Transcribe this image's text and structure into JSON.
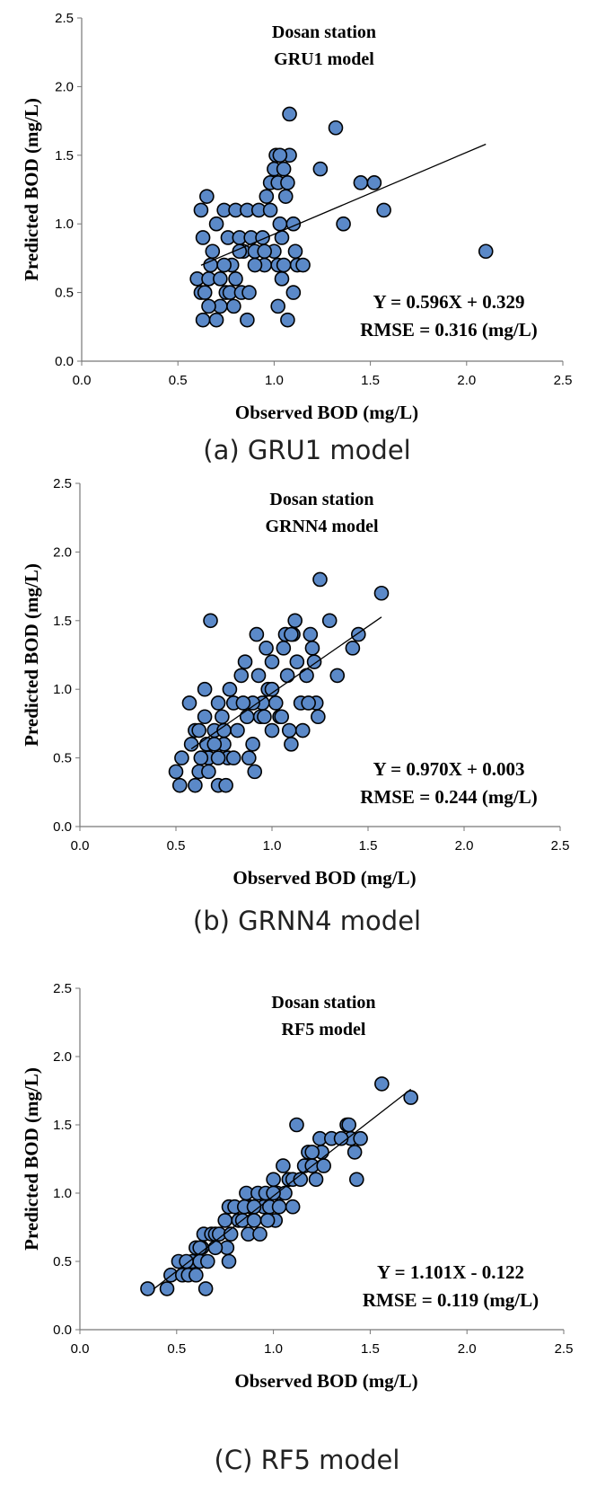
{
  "chart_data": [
    {
      "type": "scatter",
      "title": [
        "Dosan station",
        "GRU1 model"
      ],
      "xlabel": "Observed BOD (mg/L)",
      "ylabel": "Predicted BOD  (mg/L)",
      "xlim": [
        0.0,
        2.5
      ],
      "ylim": [
        0.0,
        2.5
      ],
      "xticks": [
        "0.0",
        "0.5",
        "1.0",
        "1.5",
        "2.0",
        "2.5"
      ],
      "yticks": [
        "0.0",
        "0.5",
        "1.0",
        "1.5",
        "2.0",
        "2.5"
      ],
      "grid": false,
      "equation": "Y = 0.596X + 0.329",
      "rmse": "RMSE = 0.316 (mg/L)",
      "fit": {
        "slope": 0.596,
        "intercept": 0.329,
        "x_range": [
          0.62,
          2.1
        ]
      },
      "points": [
        [
          0.62,
          1.1
        ],
        [
          0.63,
          0.9
        ],
        [
          0.65,
          1.2
        ],
        [
          0.6,
          0.6
        ],
        [
          0.62,
          0.5
        ],
        [
          0.64,
          0.5
        ],
        [
          0.66,
          0.6
        ],
        [
          0.63,
          0.3
        ],
        [
          0.67,
          0.7
        ],
        [
          0.68,
          0.8
        ],
        [
          0.7,
          1.0
        ],
        [
          0.72,
          0.6
        ],
        [
          0.7,
          0.3
        ],
        [
          0.74,
          1.1
        ],
        [
          0.76,
          0.9
        ],
        [
          0.78,
          0.7
        ],
        [
          0.75,
          0.5
        ],
        [
          0.77,
          0.5
        ],
        [
          0.72,
          0.4
        ],
        [
          0.79,
          0.4
        ],
        [
          0.8,
          1.1
        ],
        [
          0.82,
          0.9
        ],
        [
          0.84,
          0.8
        ],
        [
          0.86,
          1.1
        ],
        [
          0.8,
          0.6
        ],
        [
          0.83,
          0.5
        ],
        [
          0.87,
          0.5
        ],
        [
          0.86,
          0.3
        ],
        [
          0.88,
          0.9
        ],
        [
          0.9,
          0.8
        ],
        [
          0.92,
          1.1
        ],
        [
          0.94,
          0.9
        ],
        [
          0.95,
          0.7
        ],
        [
          0.96,
          1.2
        ],
        [
          0.98,
          1.3
        ],
        [
          1.0,
          1.4
        ],
        [
          1.01,
          1.5
        ],
        [
          1.02,
          1.3
        ],
        [
          1.03,
          1.0
        ],
        [
          1.0,
          0.8
        ],
        [
          1.02,
          0.7
        ],
        [
          1.04,
          0.6
        ],
        [
          1.02,
          0.4
        ],
        [
          1.05,
          1.4
        ],
        [
          1.06,
          1.2
        ],
        [
          1.07,
          1.3
        ],
        [
          1.08,
          1.5
        ],
        [
          1.1,
          1.0
        ],
        [
          1.11,
          0.8
        ],
        [
          1.12,
          0.7
        ],
        [
          1.1,
          0.5
        ],
        [
          1.07,
          0.3
        ],
        [
          1.08,
          1.8
        ],
        [
          1.15,
          0.7
        ],
        [
          1.24,
          1.4
        ],
        [
          1.32,
          1.7
        ],
        [
          1.36,
          1.0
        ],
        [
          1.45,
          1.3
        ],
        [
          1.52,
          1.3
        ],
        [
          1.57,
          1.1
        ],
        [
          2.1,
          0.8
        ],
        [
          0.95,
          0.8
        ],
        [
          0.98,
          1.1
        ],
        [
          1.03,
          1.5
        ],
        [
          1.05,
          0.7
        ],
        [
          0.66,
          0.4
        ],
        [
          0.74,
          0.7
        ],
        [
          0.82,
          0.8
        ],
        [
          1.04,
          0.9
        ],
        [
          0.9,
          0.7
        ]
      ]
    },
    {
      "type": "scatter",
      "title": [
        "Dosan station",
        "GRNN4 model"
      ],
      "xlabel": "Observed BOD (mg/L)",
      "ylabel": "Predicted BOD  (mg/L)",
      "xlim": [
        0.0,
        2.5
      ],
      "ylim": [
        0.0,
        2.5
      ],
      "xticks": [
        "0.0",
        "0.5",
        "1.0",
        "1.5",
        "2.0",
        "2.5"
      ],
      "yticks": [
        "0.0",
        "0.5",
        "1.0",
        "1.5",
        "2.0",
        "2.5"
      ],
      "grid": false,
      "equation": "Y = 0.970X + 0.003",
      "rmse": "RMSE = 0.244 (mg/L)",
      "fit": {
        "slope": 0.97,
        "intercept": 0.003,
        "x_range": [
          0.58,
          1.57
        ]
      },
      "points": [
        [
          0.5,
          0.4
        ],
        [
          0.52,
          0.3
        ],
        [
          0.53,
          0.5
        ],
        [
          0.57,
          0.9
        ],
        [
          0.58,
          0.6
        ],
        [
          0.6,
          0.7
        ],
        [
          0.62,
          0.4
        ],
        [
          0.6,
          0.3
        ],
        [
          0.65,
          1.0
        ],
        [
          0.65,
          0.8
        ],
        [
          0.66,
          0.6
        ],
        [
          0.67,
          0.5
        ],
        [
          0.67,
          0.4
        ],
        [
          0.68,
          1.5
        ],
        [
          0.7,
          0.7
        ],
        [
          0.72,
          0.9
        ],
        [
          0.72,
          0.3
        ],
        [
          0.74,
          0.8
        ],
        [
          0.75,
          0.6
        ],
        [
          0.76,
          0.3
        ],
        [
          0.77,
          0.5
        ],
        [
          0.78,
          1.0
        ],
        [
          0.8,
          0.9
        ],
        [
          0.82,
          0.7
        ],
        [
          0.84,
          1.1
        ],
        [
          0.86,
          1.2
        ],
        [
          0.87,
          0.8
        ],
        [
          0.88,
          0.5
        ],
        [
          0.9,
          0.6
        ],
        [
          0.91,
          0.4
        ],
        [
          0.92,
          1.4
        ],
        [
          0.93,
          1.1
        ],
        [
          0.95,
          0.9
        ],
        [
          0.97,
          1.3
        ],
        [
          0.98,
          1.0
        ],
        [
          1.0,
          1.2
        ],
        [
          1.0,
          0.7
        ],
        [
          1.02,
          0.9
        ],
        [
          1.04,
          0.8
        ],
        [
          1.06,
          1.3
        ],
        [
          1.07,
          1.4
        ],
        [
          1.08,
          1.1
        ],
        [
          1.09,
          0.7
        ],
        [
          1.1,
          0.6
        ],
        [
          1.11,
          1.4
        ],
        [
          1.12,
          1.5
        ],
        [
          1.13,
          1.2
        ],
        [
          1.15,
          0.9
        ],
        [
          1.16,
          0.7
        ],
        [
          1.18,
          1.1
        ],
        [
          1.2,
          1.4
        ],
        [
          1.21,
          1.3
        ],
        [
          1.22,
          1.2
        ],
        [
          1.23,
          0.9
        ],
        [
          1.24,
          0.8
        ],
        [
          1.25,
          1.8
        ],
        [
          1.3,
          1.5
        ],
        [
          1.34,
          1.1
        ],
        [
          1.42,
          1.3
        ],
        [
          1.45,
          1.4
        ],
        [
          1.57,
          1.7
        ],
        [
          0.63,
          0.5
        ],
        [
          0.7,
          0.6
        ],
        [
          0.8,
          0.5
        ],
        [
          0.94,
          0.8
        ],
        [
          1.05,
          0.8
        ],
        [
          1.0,
          1.0
        ],
        [
          0.9,
          0.9
        ],
        [
          0.75,
          0.7
        ],
        [
          0.62,
          0.7
        ],
        [
          1.19,
          0.9
        ],
        [
          1.1,
          1.4
        ],
        [
          0.85,
          0.9
        ],
        [
          0.72,
          0.5
        ],
        [
          0.96,
          0.8
        ]
      ]
    },
    {
      "type": "scatter",
      "title": [
        "Dosan station",
        "RF5 model"
      ],
      "xlabel": "Observed BOD (mg/L)",
      "ylabel": "Predicted BOD  (mg/L)",
      "xlim": [
        0.0,
        2.5
      ],
      "ylim": [
        0.0,
        2.5
      ],
      "xticks": [
        "0.0",
        "0.5",
        "1.0",
        "1.5",
        "2.0",
        "2.5"
      ],
      "yticks": [
        "0.0",
        "0.5",
        "1.0",
        "1.5",
        "2.0",
        "2.5"
      ],
      "grid": false,
      "equation": "Y = 1.101X - 0.122",
      "rmse": "RMSE = 0.119 (mg/L)",
      "fit": {
        "slope": 1.101,
        "intercept": -0.122,
        "x_range": [
          0.38,
          1.71
        ]
      },
      "points": [
        [
          0.35,
          0.3
        ],
        [
          0.45,
          0.3
        ],
        [
          0.47,
          0.4
        ],
        [
          0.51,
          0.5
        ],
        [
          0.53,
          0.4
        ],
        [
          0.56,
          0.4
        ],
        [
          0.58,
          0.5
        ],
        [
          0.6,
          0.6
        ],
        [
          0.6,
          0.4
        ],
        [
          0.62,
          0.5
        ],
        [
          0.63,
          0.6
        ],
        [
          0.64,
          0.7
        ],
        [
          0.65,
          0.3
        ],
        [
          0.66,
          0.5
        ],
        [
          0.68,
          0.7
        ],
        [
          0.7,
          0.7
        ],
        [
          0.72,
          0.7
        ],
        [
          0.75,
          0.8
        ],
        [
          0.76,
          0.6
        ],
        [
          0.77,
          0.9
        ],
        [
          0.77,
          0.5
        ],
        [
          0.8,
          0.9
        ],
        [
          0.82,
          0.8
        ],
        [
          0.84,
          0.8
        ],
        [
          0.86,
          1.0
        ],
        [
          0.87,
          0.7
        ],
        [
          0.88,
          0.9
        ],
        [
          0.9,
          0.8
        ],
        [
          0.92,
          1.0
        ],
        [
          0.93,
          0.7
        ],
        [
          0.95,
          0.9
        ],
        [
          0.96,
          1.0
        ],
        [
          0.98,
          0.9
        ],
        [
          1.0,
          1.1
        ],
        [
          1.01,
          0.8
        ],
        [
          1.02,
          1.0
        ],
        [
          1.03,
          0.9
        ],
        [
          1.05,
          1.2
        ],
        [
          1.08,
          1.1
        ],
        [
          1.1,
          1.1
        ],
        [
          1.1,
          0.9
        ],
        [
          1.12,
          1.5
        ],
        [
          1.14,
          1.1
        ],
        [
          1.16,
          1.2
        ],
        [
          1.18,
          1.3
        ],
        [
          1.2,
          1.2
        ],
        [
          1.22,
          1.1
        ],
        [
          1.24,
          1.4
        ],
        [
          1.25,
          1.3
        ],
        [
          1.26,
          1.2
        ],
        [
          1.3,
          1.4
        ],
        [
          1.38,
          1.5
        ],
        [
          1.39,
          1.5
        ],
        [
          1.4,
          1.4
        ],
        [
          1.42,
          1.3
        ],
        [
          1.43,
          1.1
        ],
        [
          1.45,
          1.4
        ],
        [
          1.56,
          1.8
        ],
        [
          1.71,
          1.7
        ],
        [
          0.7,
          0.6
        ],
        [
          0.78,
          0.7
        ],
        [
          0.85,
          0.9
        ],
        [
          0.97,
          0.8
        ],
        [
          1.06,
          1.0
        ],
        [
          1.35,
          1.4
        ],
        [
          0.55,
          0.5
        ],
        [
          0.62,
          0.6
        ],
        [
          0.9,
          0.9
        ],
        [
          1.0,
          1.0
        ],
        [
          1.2,
          1.3
        ]
      ]
    }
  ],
  "captions": [
    "(a) GRU1 model",
    "(b) GRNN4 model",
    "(C) RF5 model"
  ]
}
